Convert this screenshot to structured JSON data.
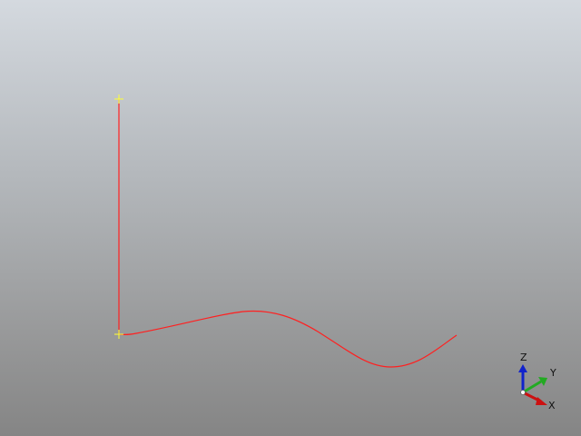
{
  "viewport": {
    "background_top": "#d4d9df",
    "background_bottom": "#858585"
  },
  "curve": {
    "color": "#ff2020",
    "vertex_marker_color": "#ffff33"
  },
  "triad": {
    "x_label": "X",
    "y_label": "Y",
    "z_label": "Z",
    "x_color": "#cc1111",
    "y_color": "#22aa22",
    "z_color": "#1122cc"
  }
}
